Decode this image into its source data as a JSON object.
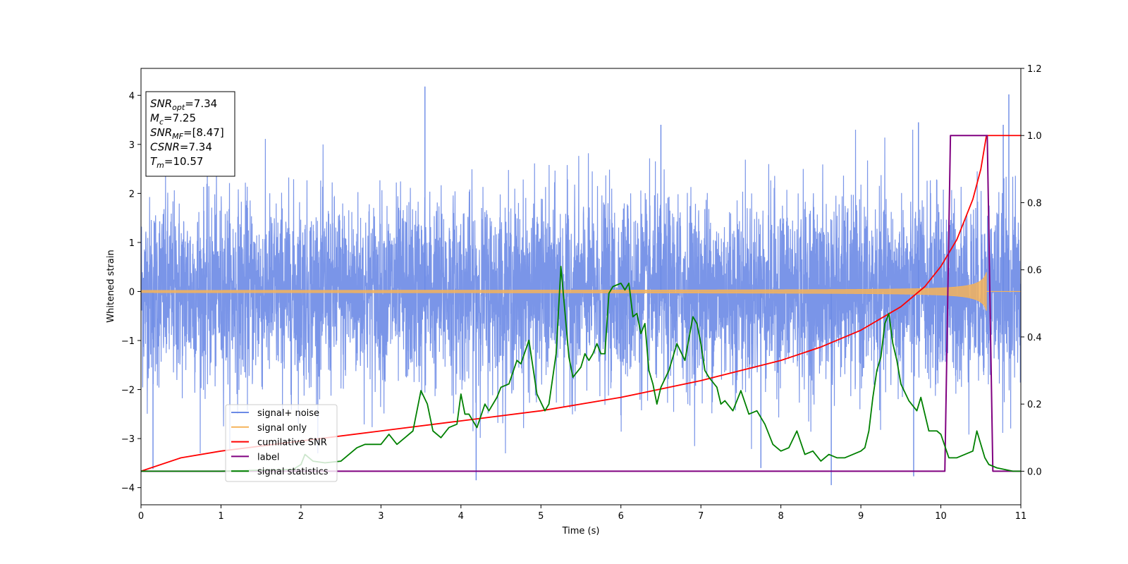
{
  "chart_data": {
    "type": "line",
    "xlabel": "Time (s)",
    "ylabel": "Whitened strain",
    "xlim": [
      0,
      11
    ],
    "ylim_left": [
      -4.35,
      4.55
    ],
    "ylim_right": [
      -0.1,
      1.2
    ],
    "x_ticks": [
      "0",
      "1",
      "2",
      "3",
      "4",
      "5",
      "6",
      "7",
      "8",
      "9",
      "10",
      "11"
    ],
    "y_ticks_left": [
      "−4",
      "−3",
      "−2",
      "−1",
      "0",
      "1",
      "2",
      "3",
      "4"
    ],
    "y_ticks_right": [
      "0.0",
      "0.2",
      "0.4",
      "0.6",
      "0.8",
      "1.0",
      "1.2"
    ],
    "grid": false,
    "legend_position": "lower-left",
    "info_box": [
      {
        "base": "SNR",
        "sub": "opt",
        "rest": "=7.34"
      },
      {
        "base": "M",
        "sub": "c",
        "rest": "=7.25"
      },
      {
        "base": "SNR",
        "sub": "MF",
        "rest": "=[8.47]"
      },
      {
        "base": "CSNR",
        "sub": "",
        "rest": "=7.34"
      },
      {
        "base": "T",
        "sub": "m",
        "rest": "=10.57"
      }
    ],
    "series": [
      {
        "name": "signal+ noise",
        "color": "#6b8ae6",
        "axis": "left",
        "kind": "noise",
        "noise_sigma": 1.0,
        "peaks_high": [
          [
            3.55,
            4.18
          ],
          [
            10.85,
            4.02
          ],
          [
            10.78,
            3.4
          ],
          [
            9.72,
            3.45
          ],
          [
            6.5,
            3.4
          ]
        ],
        "peaks_low": [
          [
            0.15,
            -3.62
          ],
          [
            4.19,
            -3.85
          ],
          [
            8.63,
            -3.95
          ],
          [
            9.66,
            -3.77
          ],
          [
            7.75,
            -3.6
          ]
        ]
      },
      {
        "name": "signal only",
        "color": "#f5b35a",
        "axis": "left",
        "kind": "chirp",
        "merger_time": 10.57,
        "peak_amplitude": 0.65
      },
      {
        "name": "cumilative SNR",
        "color": "#ff0000",
        "axis": "right",
        "x": [
          0,
          0.5,
          1,
          2,
          3,
          4,
          5,
          6,
          7,
          8,
          8.5,
          9,
          9.5,
          9.8,
          10,
          10.2,
          10.4,
          10.5,
          10.57,
          11
        ],
        "y": [
          0.0,
          0.04,
          0.06,
          0.09,
          0.12,
          0.15,
          0.18,
          0.22,
          0.27,
          0.33,
          0.37,
          0.42,
          0.49,
          0.55,
          0.61,
          0.69,
          0.81,
          0.9,
          1.0,
          1.0
        ]
      },
      {
        "name": "label",
        "color": "#800080",
        "axis": "right",
        "x": [
          0,
          10.05,
          10.12,
          10.58,
          10.65,
          11
        ],
        "y": [
          0,
          0,
          1,
          1,
          0,
          0
        ]
      },
      {
        "name": "signal statistics",
        "color": "#008000",
        "axis": "right",
        "x": [
          0,
          0.5,
          1,
          1.5,
          1.9,
          2.0,
          2.05,
          2.15,
          2.3,
          2.5,
          2.6,
          2.7,
          2.8,
          2.9,
          3.0,
          3.1,
          3.2,
          3.3,
          3.4,
          3.5,
          3.58,
          3.65,
          3.75,
          3.85,
          3.95,
          4.0,
          4.05,
          4.1,
          4.2,
          4.3,
          4.35,
          4.45,
          4.5,
          4.6,
          4.7,
          4.75,
          4.85,
          4.95,
          5.05,
          5.1,
          5.19,
          5.25,
          5.35,
          5.4,
          5.5,
          5.55,
          5.6,
          5.65,
          5.7,
          5.75,
          5.8,
          5.85,
          5.9,
          6.0,
          6.05,
          6.1,
          6.15,
          6.2,
          6.25,
          6.3,
          6.35,
          6.4,
          6.45,
          6.5,
          6.6,
          6.7,
          6.8,
          6.9,
          6.95,
          7.0,
          7.05,
          7.1,
          7.2,
          7.25,
          7.3,
          7.4,
          7.5,
          7.6,
          7.7,
          7.8,
          7.9,
          8.0,
          8.1,
          8.2,
          8.3,
          8.4,
          8.5,
          8.6,
          8.7,
          8.8,
          8.9,
          9.0,
          9.05,
          9.1,
          9.15,
          9.2,
          9.25,
          9.3,
          9.35,
          9.4,
          9.45,
          9.5,
          9.6,
          9.7,
          9.75,
          9.85,
          9.95,
          10.0,
          10.1,
          10.2,
          10.3,
          10.4,
          10.45,
          10.5,
          10.55,
          10.6,
          10.7,
          10.8,
          10.9,
          11.0
        ],
        "y": [
          0,
          0.0,
          0.0,
          0.003,
          0.005,
          0.02,
          0.05,
          0.03,
          0.025,
          0.03,
          0.05,
          0.07,
          0.08,
          0.08,
          0.08,
          0.11,
          0.08,
          0.1,
          0.12,
          0.24,
          0.2,
          0.12,
          0.1,
          0.13,
          0.14,
          0.23,
          0.17,
          0.17,
          0.13,
          0.2,
          0.18,
          0.22,
          0.25,
          0.26,
          0.33,
          0.32,
          0.39,
          0.23,
          0.18,
          0.2,
          0.35,
          0.61,
          0.34,
          0.28,
          0.31,
          0.35,
          0.33,
          0.35,
          0.38,
          0.35,
          0.35,
          0.53,
          0.55,
          0.56,
          0.54,
          0.56,
          0.46,
          0.47,
          0.41,
          0.44,
          0.3,
          0.26,
          0.2,
          0.25,
          0.3,
          0.38,
          0.33,
          0.46,
          0.44,
          0.38,
          0.3,
          0.28,
          0.25,
          0.2,
          0.21,
          0.18,
          0.24,
          0.17,
          0.18,
          0.14,
          0.08,
          0.06,
          0.07,
          0.12,
          0.05,
          0.06,
          0.03,
          0.05,
          0.04,
          0.04,
          0.05,
          0.06,
          0.07,
          0.12,
          0.22,
          0.3,
          0.34,
          0.44,
          0.47,
          0.38,
          0.33,
          0.26,
          0.21,
          0.18,
          0.22,
          0.12,
          0.12,
          0.11,
          0.04,
          0.04,
          0.05,
          0.06,
          0.12,
          0.08,
          0.04,
          0.02,
          0.01,
          0.005,
          0.0,
          0.0
        ]
      }
    ]
  }
}
